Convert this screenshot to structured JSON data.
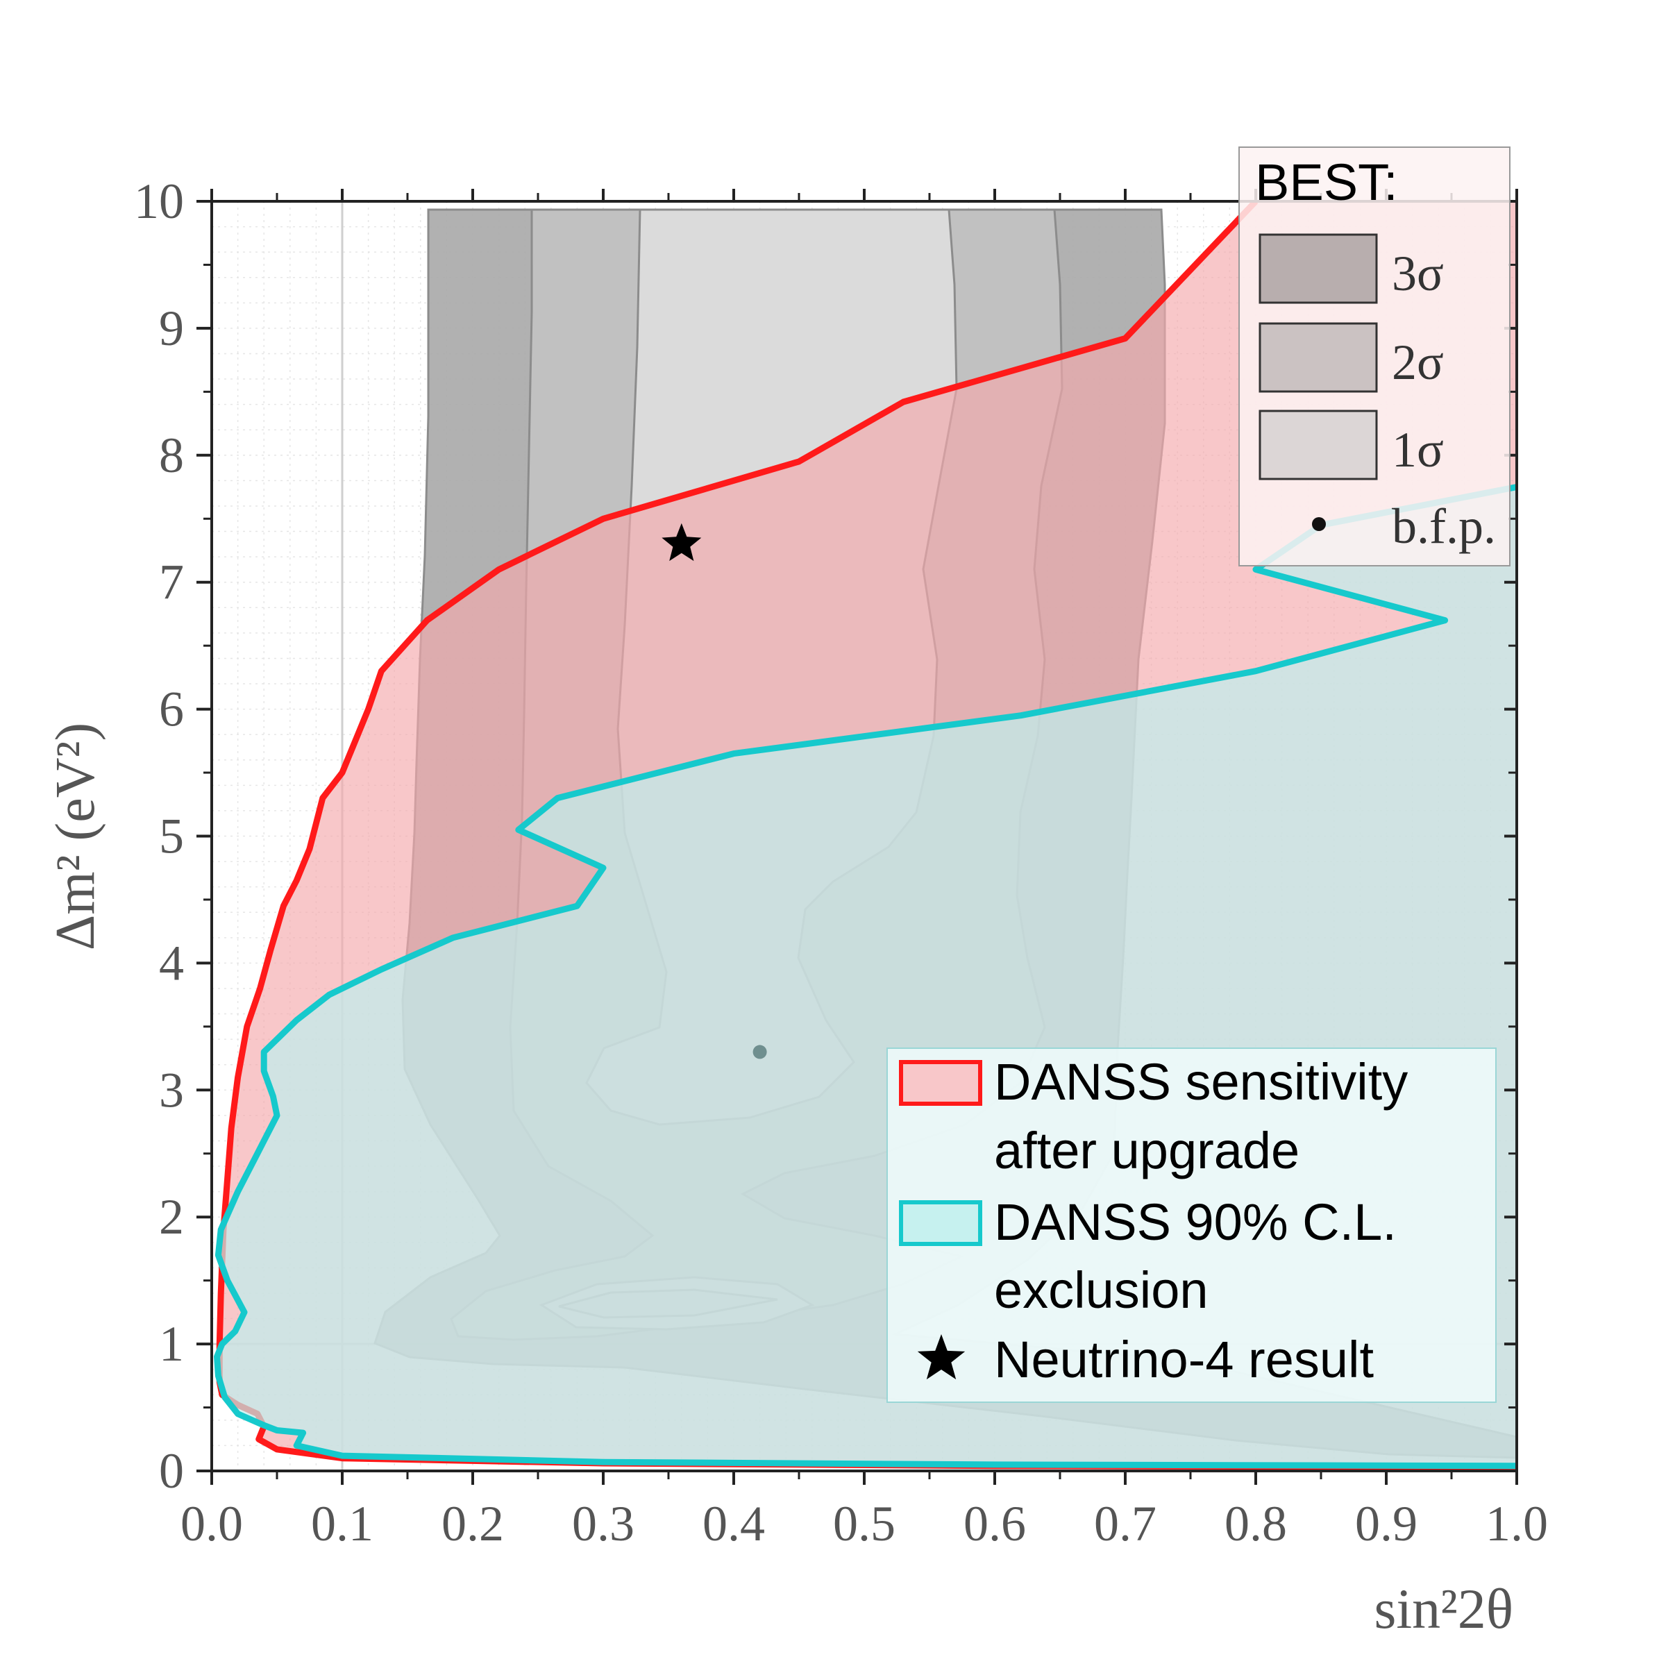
{
  "chart_data": {
    "type": "contour",
    "xlabel": "sin²2θ",
    "ylabel": "Δm² (eV²)",
    "xlim": [
      0.0,
      1.0
    ],
    "ylim": [
      0,
      10
    ],
    "x_ticks": [
      "0.0",
      "0.1",
      "0.2",
      "0.3",
      "0.4",
      "0.5",
      "0.6",
      "0.7",
      "0.8",
      "0.9",
      "1.0"
    ],
    "y_ticks": [
      "0",
      "1",
      "2",
      "3",
      "4",
      "5",
      "6",
      "7",
      "8",
      "9",
      "10"
    ],
    "colors": {
      "sigma3": "#a9a9a9",
      "sigma2": "#c3c3c3",
      "sigma1": "#dedede",
      "sensitivity_fill": "#f4a9ac",
      "sensitivity_line": "#ff1a1a",
      "exclusion_fill": "#bff0ee",
      "exclusion_line": "#16c9cc"
    },
    "best_legend": {
      "title": "BEST:",
      "items": [
        "3σ",
        "2σ",
        "1σ"
      ],
      "point_label": "b.f.p."
    },
    "legend": [
      {
        "key": "sensitivity",
        "line1": "DANSS sensitivity",
        "line2": "after upgrade"
      },
      {
        "key": "exclusion",
        "line1": "DANSS 90% C.L.",
        "line2": "exclusion"
      },
      {
        "key": "star",
        "line1": "Neutrino-4 result"
      }
    ],
    "best_fit_point": {
      "x": 0.42,
      "y": 3.3
    },
    "neutrino4_point": {
      "x": 0.36,
      "y": 7.3
    },
    "sensitivity_curve": [
      [
        1.0,
        10
      ],
      [
        0.8,
        10
      ],
      [
        0.7,
        8.92
      ],
      [
        0.53,
        8.42
      ],
      [
        0.45,
        7.95
      ],
      [
        0.3,
        7.5
      ],
      [
        0.22,
        7.1
      ],
      [
        0.165,
        6.7
      ],
      [
        0.13,
        6.3
      ],
      [
        0.12,
        6.0
      ],
      [
        0.11,
        5.75
      ],
      [
        0.1,
        5.5
      ],
      [
        0.085,
        5.3
      ],
      [
        0.075,
        4.9
      ],
      [
        0.065,
        4.65
      ],
      [
        0.055,
        4.45
      ],
      [
        0.045,
        4.1
      ],
      [
        0.037,
        3.8
      ],
      [
        0.027,
        3.5
      ],
      [
        0.02,
        3.1
      ],
      [
        0.015,
        2.7
      ],
      [
        0.012,
        2.3
      ],
      [
        0.009,
        1.9
      ],
      [
        0.007,
        1.4
      ],
      [
        0.006,
        1.0
      ],
      [
        0.006,
        0.7
      ],
      [
        0.008,
        0.6
      ],
      [
        0.02,
        0.52
      ],
      [
        0.035,
        0.45
      ],
      [
        0.04,
        0.35
      ],
      [
        0.036,
        0.25
      ],
      [
        0.05,
        0.17
      ],
      [
        0.1,
        0.1
      ],
      [
        0.3,
        0.06
      ],
      [
        0.6,
        0.04
      ],
      [
        1.0,
        0.03
      ]
    ],
    "exclusion_curve": [
      [
        1.0,
        7.75
      ],
      [
        0.9,
        7.55
      ],
      [
        0.85,
        7.45
      ],
      [
        0.8,
        7.1
      ],
      [
        0.945,
        6.7
      ],
      [
        0.8,
        6.3
      ],
      [
        0.62,
        5.95
      ],
      [
        0.4,
        5.65
      ],
      [
        0.265,
        5.3
      ],
      [
        0.235,
        5.05
      ],
      [
        0.3,
        4.75
      ],
      [
        0.28,
        4.45
      ],
      [
        0.185,
        4.2
      ],
      [
        0.13,
        3.95
      ],
      [
        0.09,
        3.75
      ],
      [
        0.065,
        3.55
      ],
      [
        0.055,
        3.45
      ],
      [
        0.04,
        3.3
      ],
      [
        0.04,
        3.15
      ],
      [
        0.047,
        2.95
      ],
      [
        0.05,
        2.8
      ],
      [
        0.035,
        2.5
      ],
      [
        0.02,
        2.2
      ],
      [
        0.007,
        1.9
      ],
      [
        0.005,
        1.7
      ],
      [
        0.012,
        1.5
      ],
      [
        0.025,
        1.25
      ],
      [
        0.018,
        1.1
      ],
      [
        0.008,
        1.0
      ],
      [
        0.004,
        0.9
      ],
      [
        0.005,
        0.75
      ],
      [
        0.01,
        0.58
      ],
      [
        0.02,
        0.45
      ],
      [
        0.04,
        0.36
      ],
      [
        0.05,
        0.32
      ],
      [
        0.07,
        0.3
      ],
      [
        0.065,
        0.2
      ],
      [
        0.1,
        0.12
      ],
      [
        0.3,
        0.07
      ],
      [
        0.6,
        0.05
      ],
      [
        1.0,
        0.04
      ]
    ]
  }
}
